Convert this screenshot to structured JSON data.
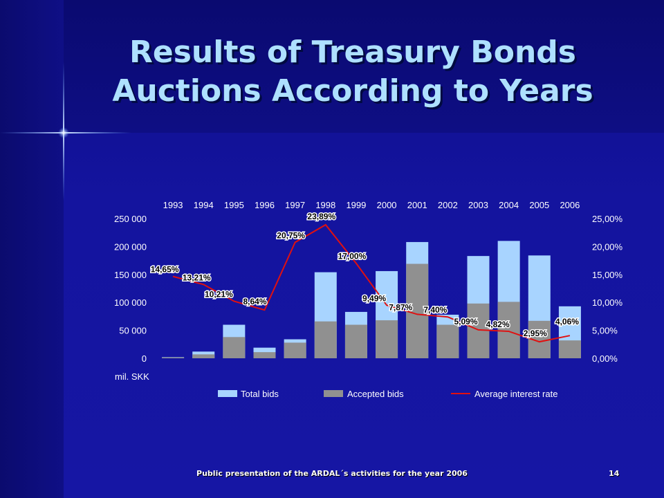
{
  "slide": {
    "title_line1": "Results of Treasury Bonds",
    "title_line2": "Auctions According to Years",
    "footer": "Public presentation of the ARDAL´s activities for the year 2006",
    "page_number": "14"
  },
  "colors": {
    "total_bids": "#a8d4ff",
    "accepted_bids": "#909090",
    "interest_line": "#e01010",
    "title": "#aee0ff"
  },
  "chart_data": {
    "type": "bar",
    "categories": [
      "1993",
      "1994",
      "1995",
      "1996",
      "1997",
      "1998",
      "1999",
      "2000",
      "2001",
      "2002",
      "2003",
      "2004",
      "2005",
      "2006"
    ],
    "series": [
      {
        "name": "Total bids",
        "type": "bar",
        "axis": "left",
        "values": [
          2000,
          12000,
          60000,
          19000,
          34000,
          154000,
          83000,
          156000,
          208000,
          78000,
          183000,
          210000,
          184000,
          93000
        ]
      },
      {
        "name": "Accepted bids",
        "type": "bar",
        "axis": "left",
        "values": [
          1500,
          7000,
          38000,
          11000,
          28000,
          66000,
          60000,
          68000,
          169000,
          60000,
          98000,
          101000,
          67000,
          32000
        ]
      },
      {
        "name": "Average interest rate",
        "type": "line",
        "axis": "right",
        "values": [
          14.65,
          13.21,
          10.21,
          8.64,
          20.75,
          23.89,
          17.0,
          9.49,
          7.87,
          7.4,
          5.09,
          4.82,
          2.95,
          4.06
        ],
        "labels": [
          "14,65%",
          "13,21%",
          "10,21%",
          "8,64%",
          "20,75%",
          "23,89%",
          "17,00%",
          "9,49%",
          "7,87%",
          "7,40%",
          "5,09%",
          "4,82%",
          "2,95%",
          "4,06%"
        ]
      }
    ],
    "y_left": {
      "range": [
        0,
        250000
      ],
      "ticks": [
        "0",
        "50 000",
        "100 000",
        "150 000",
        "200 000",
        "250 000"
      ],
      "unit_label": "mil. SKK"
    },
    "y_right": {
      "range": [
        0,
        25
      ],
      "ticks": [
        "0,00%",
        "5,00%",
        "10,00%",
        "15,00%",
        "20,00%",
        "25,00%"
      ]
    },
    "x_axis_position": "top",
    "grid": false,
    "legend": {
      "placement": "bottom",
      "items": [
        "Total bids",
        "Accepted bids",
        "Average interest rate"
      ]
    }
  }
}
